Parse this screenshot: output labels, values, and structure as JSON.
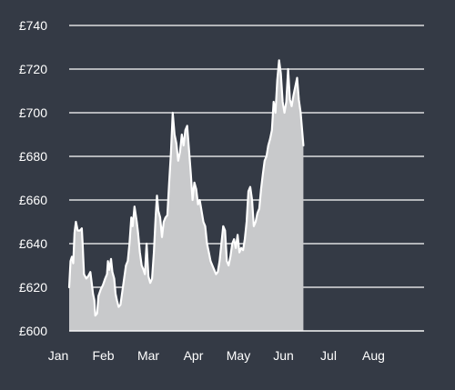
{
  "colors": {
    "background": "#343a45",
    "area_fill": "#c8c9cb",
    "line": "#ffffff",
    "grid": "#ffffff",
    "text": "#ffffff"
  },
  "chart_data": {
    "type": "area",
    "title": "",
    "xlabel": "",
    "ylabel": "",
    "ylim": [
      600,
      740
    ],
    "grid": true,
    "legend": "none",
    "y_ticks": [
      {
        "value": 600,
        "label": "£600"
      },
      {
        "value": 620,
        "label": "£620"
      },
      {
        "value": 640,
        "label": "£640"
      },
      {
        "value": 660,
        "label": "£660"
      },
      {
        "value": 680,
        "label": "£680"
      },
      {
        "value": 700,
        "label": "£700"
      },
      {
        "value": 720,
        "label": "£720"
      },
      {
        "value": 740,
        "label": "£740"
      }
    ],
    "x_ticks": [
      {
        "label": "Jan",
        "month": 0
      },
      {
        "label": "Feb",
        "month": 1
      },
      {
        "label": "Mar",
        "month": 2
      },
      {
        "label": "Apr",
        "month": 3
      },
      {
        "label": "May",
        "month": 4
      },
      {
        "label": "Jun",
        "month": 5
      },
      {
        "label": "Jul",
        "month": 6
      },
      {
        "label": "Aug",
        "month": 7
      }
    ],
    "series": [
      {
        "comment_x": "x is position in months from start of January",
        "points": [
          [
            0.0,
            620
          ],
          [
            0.03,
            632
          ],
          [
            0.06,
            634
          ],
          [
            0.09,
            631
          ],
          [
            0.12,
            645
          ],
          [
            0.15,
            650
          ],
          [
            0.19,
            646
          ],
          [
            0.24,
            646
          ],
          [
            0.28,
            647
          ],
          [
            0.3,
            640
          ],
          [
            0.33,
            626
          ],
          [
            0.38,
            624
          ],
          [
            0.42,
            625
          ],
          [
            0.47,
            627
          ],
          [
            0.5,
            622
          ],
          [
            0.53,
            617
          ],
          [
            0.56,
            614
          ],
          [
            0.58,
            607
          ],
          [
            0.62,
            608
          ],
          [
            0.65,
            616
          ],
          [
            0.7,
            619
          ],
          [
            0.75,
            621
          ],
          [
            0.8,
            624
          ],
          [
            0.84,
            626
          ],
          [
            0.86,
            632
          ],
          [
            0.89,
            628
          ],
          [
            0.93,
            633
          ],
          [
            0.96,
            627
          ],
          [
            1.0,
            624
          ],
          [
            1.03,
            617
          ],
          [
            1.06,
            614
          ],
          [
            1.1,
            611
          ],
          [
            1.14,
            612
          ],
          [
            1.18,
            618
          ],
          [
            1.22,
            624
          ],
          [
            1.26,
            630
          ],
          [
            1.3,
            632
          ],
          [
            1.34,
            640
          ],
          [
            1.38,
            652
          ],
          [
            1.41,
            648
          ],
          [
            1.45,
            657
          ],
          [
            1.5,
            650
          ],
          [
            1.53,
            645
          ],
          [
            1.57,
            636
          ],
          [
            1.61,
            630
          ],
          [
            1.65,
            628
          ],
          [
            1.68,
            626
          ],
          [
            1.72,
            640
          ],
          [
            1.76,
            625
          ],
          [
            1.8,
            622
          ],
          [
            1.84,
            624
          ],
          [
            1.88,
            636
          ],
          [
            1.92,
            652
          ],
          [
            1.95,
            662
          ],
          [
            1.98,
            655
          ],
          [
            2.02,
            652
          ],
          [
            2.06,
            643
          ],
          [
            2.1,
            650
          ],
          [
            2.14,
            652
          ],
          [
            2.18,
            653
          ],
          [
            2.22,
            668
          ],
          [
            2.26,
            682
          ],
          [
            2.3,
            700
          ],
          [
            2.34,
            690
          ],
          [
            2.38,
            686
          ],
          [
            2.42,
            678
          ],
          [
            2.46,
            682
          ],
          [
            2.5,
            690
          ],
          [
            2.54,
            685
          ],
          [
            2.58,
            692
          ],
          [
            2.62,
            694
          ],
          [
            2.66,
            683
          ],
          [
            2.7,
            672
          ],
          [
            2.74,
            660
          ],
          [
            2.78,
            668
          ],
          [
            2.82,
            665
          ],
          [
            2.86,
            658
          ],
          [
            2.9,
            660
          ],
          [
            2.94,
            655
          ],
          [
            2.98,
            650
          ],
          [
            3.02,
            648
          ],
          [
            3.06,
            640
          ],
          [
            3.1,
            636
          ],
          [
            3.14,
            632
          ],
          [
            3.18,
            630
          ],
          [
            3.22,
            628
          ],
          [
            3.26,
            626
          ],
          [
            3.3,
            627
          ],
          [
            3.34,
            632
          ],
          [
            3.38,
            640
          ],
          [
            3.42,
            648
          ],
          [
            3.46,
            646
          ],
          [
            3.5,
            632
          ],
          [
            3.54,
            630
          ],
          [
            3.58,
            634
          ],
          [
            3.62,
            640
          ],
          [
            3.66,
            642
          ],
          [
            3.7,
            638
          ],
          [
            3.74,
            644
          ],
          [
            3.78,
            636
          ],
          [
            3.82,
            638
          ],
          [
            3.86,
            637
          ],
          [
            3.9,
            642
          ],
          [
            3.94,
            650
          ],
          [
            3.98,
            664
          ],
          [
            4.02,
            666
          ],
          [
            4.06,
            660
          ],
          [
            4.1,
            648
          ],
          [
            4.14,
            650
          ],
          [
            4.18,
            654
          ],
          [
            4.22,
            656
          ],
          [
            4.26,
            665
          ],
          [
            4.3,
            672
          ],
          [
            4.34,
            678
          ],
          [
            4.38,
            680
          ],
          [
            4.42,
            685
          ],
          [
            4.46,
            688
          ],
          [
            4.5,
            692
          ],
          [
            4.54,
            705
          ],
          [
            4.58,
            700
          ],
          [
            4.62,
            715
          ],
          [
            4.66,
            724
          ],
          [
            4.7,
            718
          ],
          [
            4.74,
            705
          ],
          [
            4.78,
            700
          ],
          [
            4.82,
            705
          ],
          [
            4.86,
            720
          ],
          [
            4.9,
            706
          ],
          [
            4.94,
            703
          ],
          [
            4.98,
            708
          ],
          [
            5.02,
            712
          ],
          [
            5.06,
            716
          ],
          [
            5.1,
            706
          ],
          [
            5.14,
            700
          ],
          [
            5.18,
            690
          ],
          [
            5.2,
            685
          ]
        ]
      }
    ]
  }
}
